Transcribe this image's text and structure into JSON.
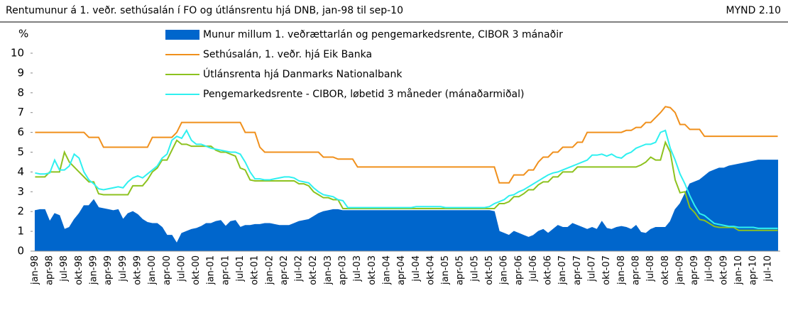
{
  "chart_data": {
    "type": "line",
    "title": "Rentumunur á 1. veðr. sethúsalán í FO og útlánsrentu hjá DNB, jan-98 til sep-10",
    "figure_label": "MYND 2.10",
    "y_unit": "%",
    "categories": [
      "jan-98",
      null,
      null,
      "apr-98",
      null,
      null,
      "jul-98",
      null,
      null,
      "okt-98",
      null,
      null,
      "jan-99",
      null,
      null,
      "apr-99",
      null,
      null,
      "jul-99",
      null,
      null,
      "okt-99",
      null,
      null,
      "jan-00",
      null,
      null,
      "apr-00",
      null,
      null,
      "jul-00",
      null,
      null,
      "okt-00",
      null,
      null,
      "jan-01",
      null,
      null,
      "apr-01",
      null,
      null,
      "jul-01",
      null,
      null,
      "okt-01",
      null,
      null,
      "jan-02",
      null,
      null,
      "apr-02",
      null,
      null,
      "jul-02",
      null,
      null,
      "okt-02",
      null,
      null,
      "jan-03",
      null,
      null,
      "apr-03",
      null,
      null,
      "jul-03",
      null,
      null,
      "okt-03",
      null,
      null,
      "jan-04",
      null,
      null,
      "apr-04",
      null,
      null,
      "jul-04",
      null,
      null,
      "okt-04",
      null,
      null,
      "jan-05",
      null,
      null,
      "apr-05",
      null,
      null,
      "jul-05",
      null,
      null,
      "okt-05",
      null,
      null,
      "jan-06",
      null,
      null,
      "apr-06",
      null,
      null,
      "jul-06",
      null,
      null,
      "okt-06",
      null,
      null,
      "jan-07",
      null,
      null,
      "apr-07",
      null,
      null,
      "jul-07",
      null,
      null,
      "okt-07",
      null,
      null,
      "jan-08",
      null,
      null,
      "apr-08",
      null,
      null,
      "jul-08",
      null,
      null,
      "okt-08",
      null,
      null,
      "jan-09",
      null,
      null,
      "apr-09",
      null,
      null,
      "jul-09",
      null,
      null,
      "okt-09",
      null,
      null,
      "jan-10",
      null,
      null,
      "apr-10",
      null,
      null,
      "jul-10",
      null,
      null
    ],
    "series": [
      {
        "name": "Munur millum 1. veðrættarlán og pengemarkedsrente, CIBOR 3 mánaðir",
        "kind": "area",
        "color": "#0066cc",
        "values": [
          2.05,
          2.1,
          2.1,
          1.5,
          1.9,
          1.8,
          1.1,
          1.2,
          1.6,
          1.9,
          2.3,
          2.3,
          2.6,
          2.2,
          2.15,
          2.1,
          2.05,
          2.1,
          1.6,
          1.9,
          2.0,
          1.85,
          1.6,
          1.45,
          1.4,
          1.4,
          1.2,
          0.8,
          0.8,
          0.4,
          0.9,
          1.0,
          1.1,
          1.15,
          1.25,
          1.4,
          1.4,
          1.5,
          1.55,
          1.25,
          1.5,
          1.55,
          1.2,
          1.3,
          1.3,
          1.35,
          1.35,
          1.4,
          1.4,
          1.35,
          1.3,
          1.3,
          1.3,
          1.4,
          1.5,
          1.55,
          1.6,
          1.75,
          1.9,
          2.0,
          2.05,
          2.1,
          2.1,
          2.05,
          2.05,
          2.05,
          2.05,
          2.05,
          2.05,
          2.05,
          2.05,
          2.05,
          2.05,
          2.05,
          2.05,
          2.05,
          2.05,
          2.05,
          2.05,
          2.05,
          2.05,
          2.05,
          2.05,
          2.05,
          2.05,
          2.05,
          2.05,
          2.05,
          2.05,
          2.05,
          2.05,
          2.05,
          2.05,
          2.05,
          2.0,
          1.0,
          0.9,
          0.8,
          1.0,
          0.9,
          0.8,
          0.7,
          0.8,
          1.0,
          1.1,
          0.9,
          1.1,
          1.3,
          1.2,
          1.2,
          1.4,
          1.3,
          1.2,
          1.1,
          1.2,
          1.1,
          1.5,
          1.15,
          1.1,
          1.2,
          1.25,
          1.2,
          1.1,
          1.3,
          0.95,
          0.9,
          1.1,
          1.2,
          1.2,
          1.2,
          1.5,
          2.1,
          2.4,
          2.9,
          3.4,
          3.5,
          3.6,
          3.8,
          4.0,
          4.1,
          4.2,
          4.2,
          4.3,
          4.35,
          4.4,
          4.45,
          4.5,
          4.55,
          4.6,
          4.6,
          4.6,
          4.6,
          4.6
        ]
      },
      {
        "name": "Sethúsalán, 1. veðr. hjá Eik Banka",
        "kind": "line",
        "color": "#f0901c",
        "values": [
          6,
          6,
          6,
          6,
          6,
          6,
          6,
          6,
          6,
          6,
          6,
          5.75,
          5.75,
          5.75,
          5.25,
          5.25,
          5.25,
          5.25,
          5.25,
          5.25,
          5.25,
          5.25,
          5.25,
          5.25,
          5.75,
          5.75,
          5.75,
          5.75,
          5.75,
          6,
          6.5,
          6.5,
          6.5,
          6.5,
          6.5,
          6.5,
          6.5,
          6.5,
          6.5,
          6.5,
          6.5,
          6.5,
          6.5,
          6,
          6,
          6,
          5.25,
          5,
          5,
          5,
          5,
          5,
          5,
          5,
          5,
          5,
          5,
          5,
          5,
          4.75,
          4.75,
          4.75,
          4.65,
          4.65,
          4.65,
          4.65,
          4.25,
          4.25,
          4.25,
          4.25,
          4.25,
          4.25,
          4.25,
          4.25,
          4.25,
          4.25,
          4.25,
          4.25,
          4.25,
          4.25,
          4.25,
          4.25,
          4.25,
          4.25,
          4.25,
          4.25,
          4.25,
          4.25,
          4.25,
          4.25,
          4.25,
          4.25,
          4.25,
          4.25,
          4.25,
          3.45,
          3.45,
          3.45,
          3.85,
          3.85,
          3.85,
          4.1,
          4.1,
          4.5,
          4.75,
          4.75,
          5,
          5,
          5.25,
          5.25,
          5.25,
          5.5,
          5.5,
          6,
          6,
          6,
          6,
          6,
          6,
          6,
          6,
          6.1,
          6.1,
          6.25,
          6.25,
          6.5,
          6.5,
          6.75,
          7,
          7.3,
          7.25,
          7,
          6.4,
          6.4,
          6.15,
          6.15,
          6.15,
          5.8,
          5.8,
          5.8,
          5.8,
          5.8,
          5.8,
          5.8,
          5.8,
          5.8,
          5.8,
          5.8,
          5.8,
          5.8,
          5.8,
          5.8,
          5.8
        ]
      },
      {
        "name": "Útlánsrenta hjá Danmarks Nationalbank",
        "kind": "line",
        "color": "#8dc21f",
        "values": [
          3.75,
          3.75,
          3.75,
          4.0,
          4.0,
          4.0,
          5.0,
          4.5,
          4.25,
          4.0,
          3.75,
          3.5,
          3.5,
          2.9,
          2.85,
          2.85,
          2.85,
          2.85,
          2.85,
          2.85,
          3.3,
          3.3,
          3.3,
          3.6,
          4.0,
          4.2,
          4.6,
          4.6,
          5.1,
          5.6,
          5.4,
          5.4,
          5.3,
          5.3,
          5.3,
          5.3,
          5.3,
          5.1,
          5.0,
          5.0,
          4.9,
          4.8,
          4.2,
          4.1,
          3.6,
          3.55,
          3.55,
          3.55,
          3.55,
          3.55,
          3.55,
          3.55,
          3.55,
          3.55,
          3.4,
          3.4,
          3.3,
          3.0,
          2.85,
          2.7,
          2.7,
          2.6,
          2.6,
          2.15,
          2.15,
          2.15,
          2.15,
          2.15,
          2.15,
          2.15,
          2.15,
          2.15,
          2.15,
          2.15,
          2.15,
          2.15,
          2.15,
          2.15,
          2.15,
          2.15,
          2.15,
          2.15,
          2.15,
          2.15,
          2.15,
          2.15,
          2.15,
          2.15,
          2.15,
          2.15,
          2.15,
          2.15,
          2.15,
          2.15,
          2.15,
          2.4,
          2.4,
          2.5,
          2.75,
          2.75,
          2.9,
          3.1,
          3.1,
          3.35,
          3.5,
          3.5,
          3.75,
          3.75,
          4.0,
          4.0,
          4.0,
          4.25,
          4.25,
          4.25,
          4.25,
          4.25,
          4.25,
          4.25,
          4.25,
          4.25,
          4.25,
          4.25,
          4.25,
          4.25,
          4.35,
          4.5,
          4.75,
          4.6,
          4.6,
          5.5,
          5.0,
          3.6,
          2.95,
          3.0,
          2.2,
          1.95,
          1.6,
          1.55,
          1.4,
          1.25,
          1.2,
          1.2,
          1.2,
          1.2,
          1.05,
          1.05,
          1.05,
          1.05,
          1.05,
          1.05,
          1.05,
          1.05,
          1.05
        ]
      },
      {
        "name": "Pengemarkedsrente - CIBOR, løbetid 3 måneder (mánaðarmiðal)",
        "kind": "line",
        "color": "#2ff0f0",
        "values": [
          3.95,
          3.9,
          3.9,
          3.95,
          4.6,
          4.1,
          4.1,
          4.3,
          4.9,
          4.7,
          4.0,
          3.6,
          3.4,
          3.15,
          3.1,
          3.15,
          3.2,
          3.25,
          3.2,
          3.5,
          3.7,
          3.8,
          3.7,
          3.9,
          4.1,
          4.3,
          4.7,
          4.9,
          5.6,
          5.8,
          5.7,
          6.1,
          5.6,
          5.4,
          5.4,
          5.3,
          5.2,
          5.15,
          5.1,
          5.05,
          5.0,
          5.0,
          4.9,
          4.5,
          4.0,
          3.65,
          3.65,
          3.6,
          3.6,
          3.65,
          3.7,
          3.75,
          3.75,
          3.7,
          3.55,
          3.5,
          3.45,
          3.2,
          3.0,
          2.85,
          2.8,
          2.75,
          2.6,
          2.55,
          2.2,
          2.2,
          2.2,
          2.2,
          2.2,
          2.2,
          2.2,
          2.2,
          2.2,
          2.2,
          2.2,
          2.2,
          2.2,
          2.2,
          2.25,
          2.25,
          2.25,
          2.25,
          2.25,
          2.25,
          2.2,
          2.2,
          2.2,
          2.2,
          2.2,
          2.2,
          2.2,
          2.2,
          2.2,
          2.25,
          2.4,
          2.5,
          2.6,
          2.8,
          2.85,
          3.0,
          3.1,
          3.25,
          3.4,
          3.55,
          3.7,
          3.85,
          3.95,
          4.0,
          4.1,
          4.2,
          4.3,
          4.4,
          4.5,
          4.6,
          4.85,
          4.85,
          4.9,
          4.8,
          4.9,
          4.75,
          4.7,
          4.9,
          5.0,
          5.2,
          5.3,
          5.4,
          5.4,
          5.5,
          6.0,
          6.1,
          5.2,
          4.6,
          3.9,
          3.4,
          2.8,
          2.3,
          1.9,
          1.8,
          1.6,
          1.4,
          1.35,
          1.3,
          1.25,
          1.25,
          1.2,
          1.2,
          1.2,
          1.2,
          1.15,
          1.15,
          1.15,
          1.15,
          1.15
        ]
      }
    ],
    "ylim": [
      0,
      10
    ],
    "yticks": [
      0,
      1,
      2,
      3,
      4,
      5,
      6,
      7,
      8,
      9,
      10
    ],
    "grid": false
  }
}
